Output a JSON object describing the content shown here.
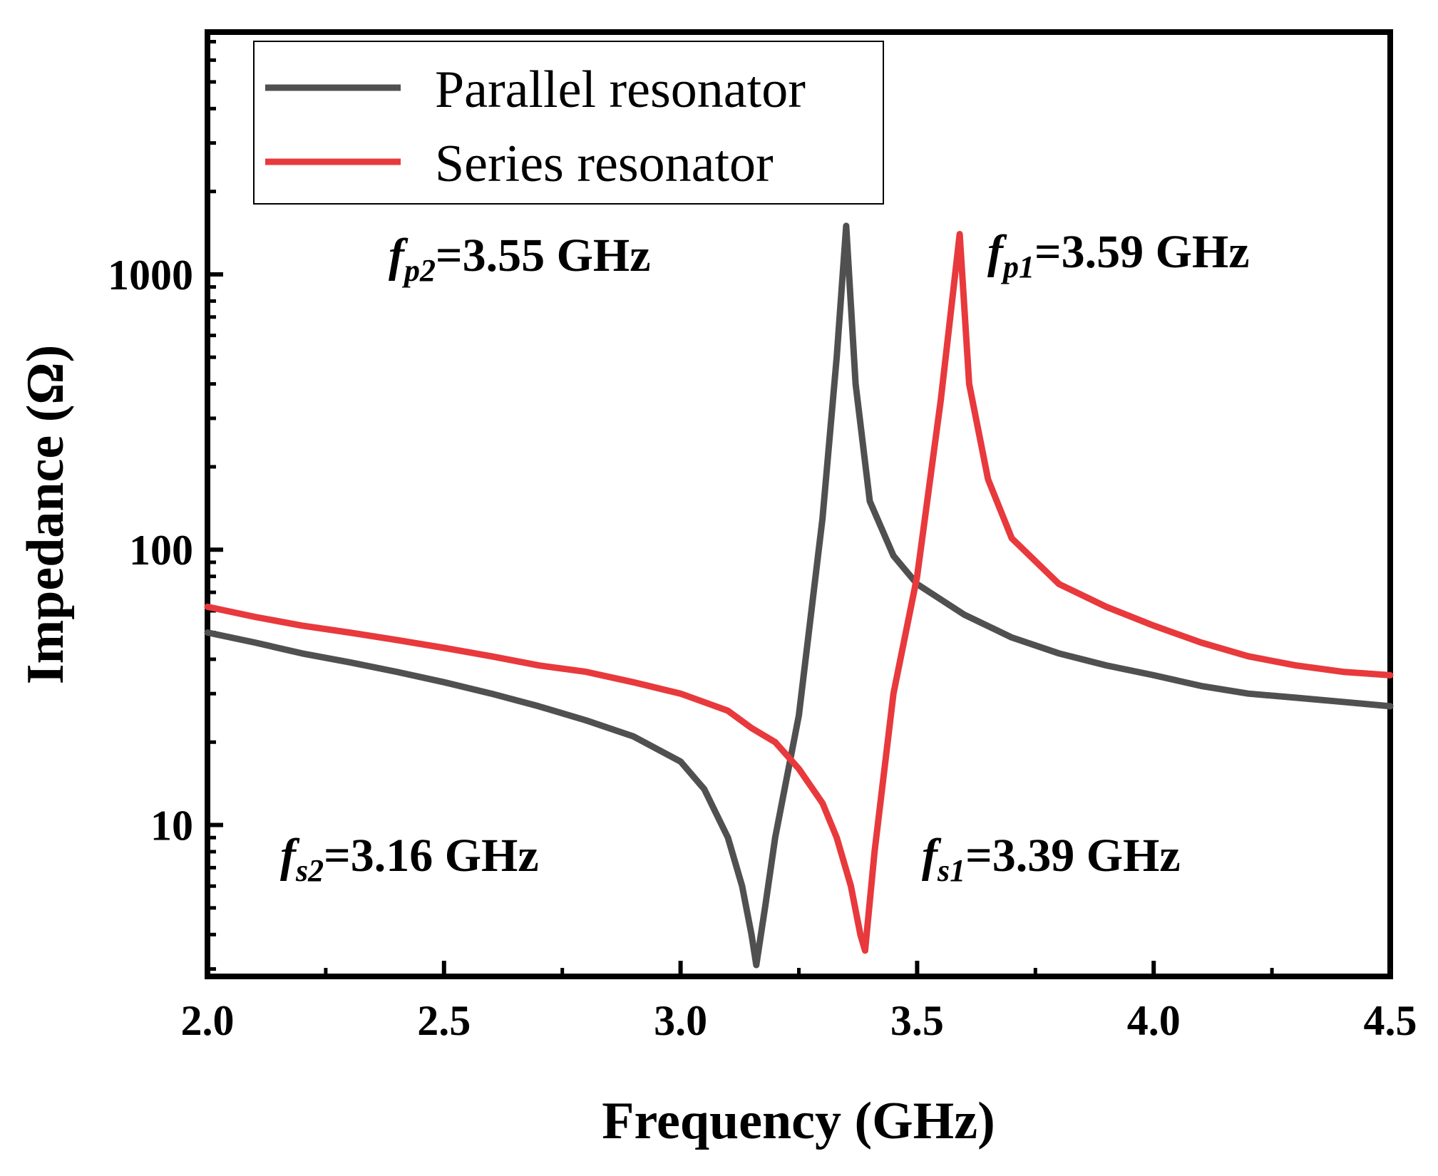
{
  "chart_data": {
    "type": "line",
    "title": "",
    "xlabel": "Frequency (GHz)",
    "ylabel": "Impedance (Ω)",
    "xlim": [
      2.0,
      4.5
    ],
    "ylim_log10": [
      0.45,
      3.88
    ],
    "yscale": "log",
    "xticks": [
      "2.0",
      "2.5",
      "3.0",
      "3.5",
      "4.0",
      "4.5"
    ],
    "yticks": [
      "10",
      "100",
      "1000"
    ],
    "legend": {
      "position": "top-left",
      "entries": [
        "Parallel resonator",
        "Series resonator"
      ]
    },
    "series": [
      {
        "name": "Parallel resonator",
        "color": "#505050",
        "x": [
          2.0,
          2.1,
          2.2,
          2.3,
          2.4,
          2.5,
          2.6,
          2.7,
          2.8,
          2.9,
          3.0,
          3.05,
          3.1,
          3.13,
          3.15,
          3.16,
          3.18,
          3.2,
          3.25,
          3.3,
          3.33,
          3.35,
          3.37,
          3.4,
          3.45,
          3.5,
          3.6,
          3.7,
          3.8,
          3.9,
          4.0,
          4.1,
          4.2,
          4.3,
          4.4,
          4.5
        ],
        "values": [
          50,
          46,
          42,
          39,
          36,
          33,
          30,
          27,
          24,
          21,
          17,
          13.5,
          9,
          6,
          4,
          3.1,
          5.2,
          9,
          25,
          130,
          500,
          1500,
          400,
          150,
          95,
          75,
          58,
          48,
          42,
          38,
          35,
          32,
          30,
          29,
          28,
          27
        ]
      },
      {
        "name": "Series resonator",
        "color": "#e8393c",
        "x": [
          2.0,
          2.1,
          2.2,
          2.3,
          2.4,
          2.5,
          2.6,
          2.7,
          2.8,
          2.9,
          3.0,
          3.1,
          3.15,
          3.2,
          3.25,
          3.3,
          3.33,
          3.36,
          3.38,
          3.39,
          3.41,
          3.45,
          3.5,
          3.55,
          3.57,
          3.59,
          3.61,
          3.65,
          3.7,
          3.8,
          3.9,
          4.0,
          4.1,
          4.2,
          4.3,
          4.4,
          4.5
        ],
        "values": [
          62,
          57,
          53,
          50,
          47,
          44,
          41,
          38,
          36,
          33,
          30,
          26,
          22.5,
          20,
          16,
          12,
          9,
          6,
          4,
          3.5,
          8,
          30,
          80,
          350,
          700,
          1400,
          400,
          180,
          110,
          75,
          62,
          53,
          46,
          41,
          38,
          36,
          35
        ]
      }
    ],
    "annotations": [
      {
        "f": "f",
        "sub": "p2",
        "text": "=3.55 GHz"
      },
      {
        "f": "f",
        "sub": "p1",
        "text": "=3.59 GHz"
      },
      {
        "f": "f",
        "sub": "s2",
        "text": "=3.16 GHz"
      },
      {
        "f": "f",
        "sub": "s1",
        "text": "=3.39 GHz"
      }
    ]
  }
}
